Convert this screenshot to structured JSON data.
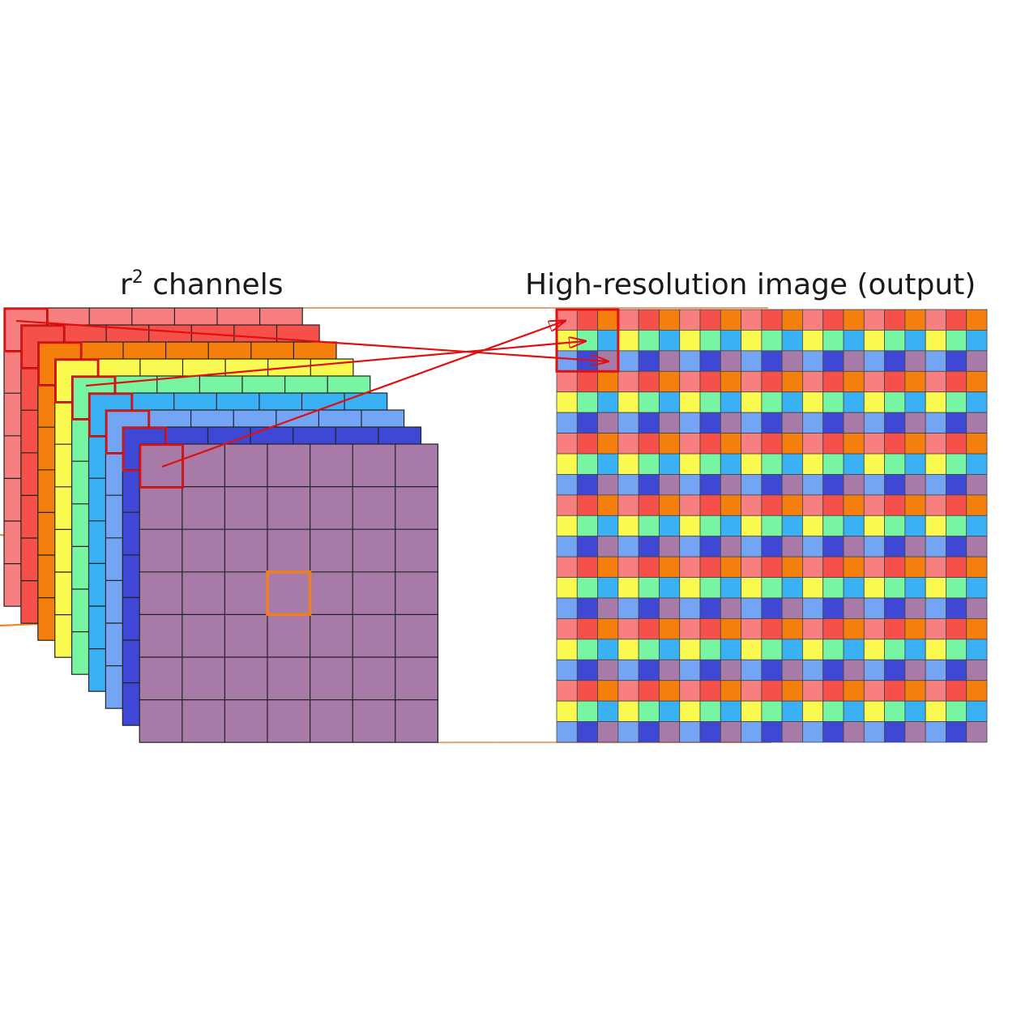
{
  "labels": {
    "channels_base": "r",
    "channels_sup": "2",
    "channels_text": " channels",
    "output": "High-resolution  image (output)"
  },
  "diagram": {
    "grid_size": 7,
    "output_grid_size": 21,
    "upscale_factor": 3,
    "channel_colors": [
      "#f77f7f",
      "#f5504a",
      "#f57f0c",
      "#fafa50",
      "#77f5a2",
      "#3ab0f5",
      "#74a5f5",
      "#3f48d5",
      "#a87aa8"
    ],
    "outline_color": "#e01010",
    "zoom_color": "#f07f1f",
    "guide_color": "#e8a070",
    "grid_line_color": "#222222"
  }
}
